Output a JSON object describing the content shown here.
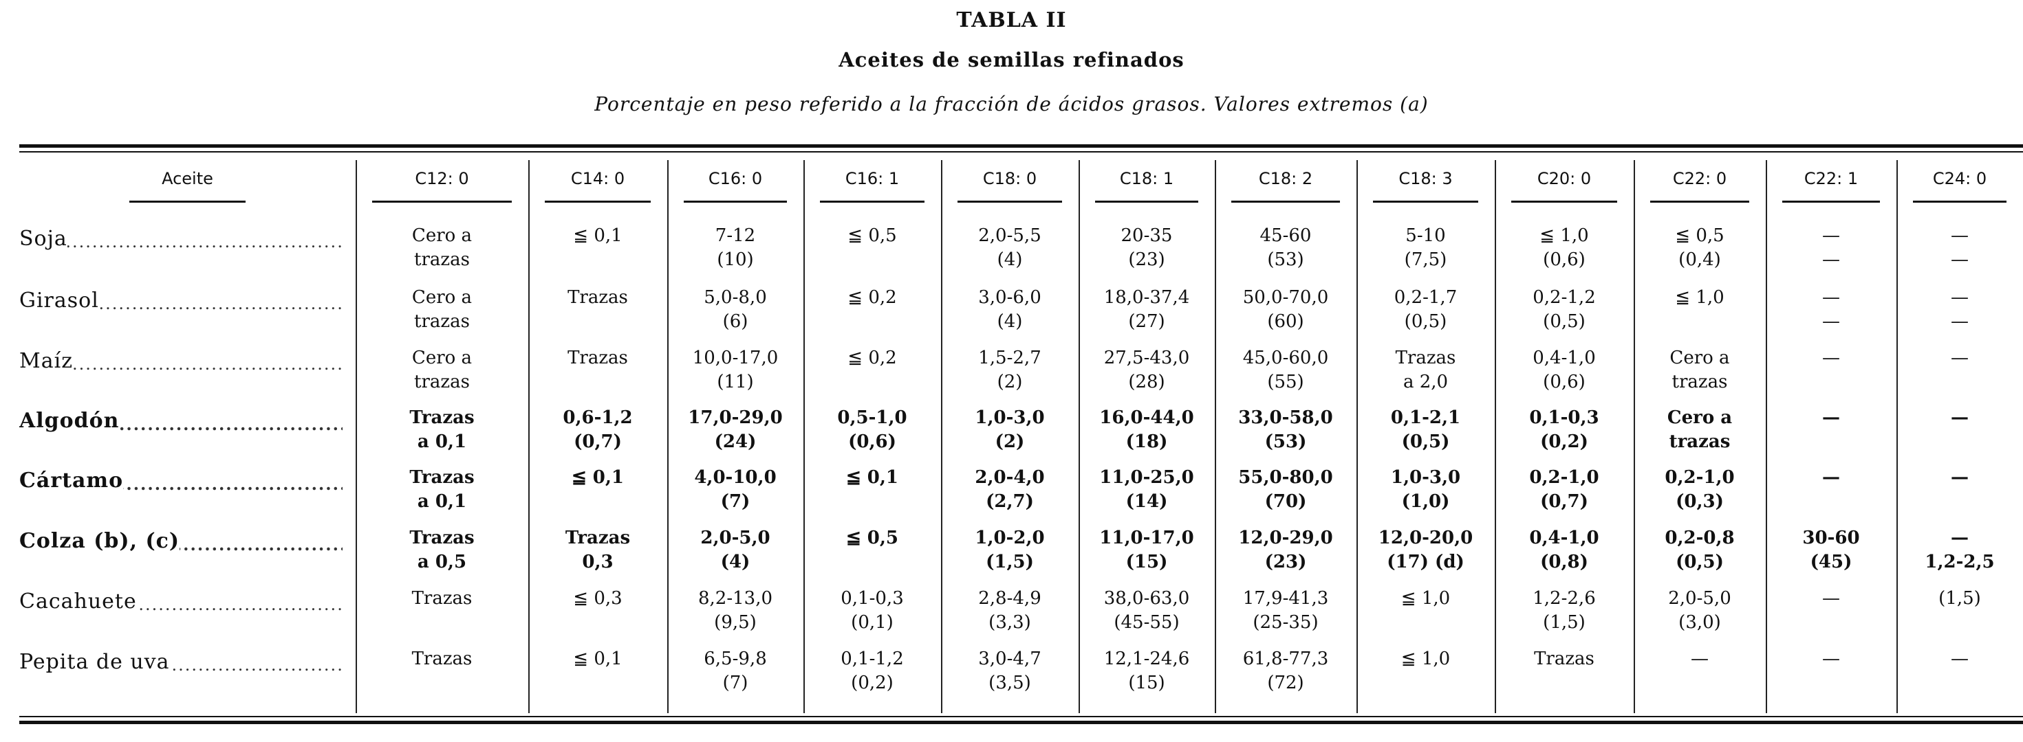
{
  "title": "TABLA II",
  "subtitle": "Aceites de semillas refinados",
  "caption": "Porcentaje en peso referido a la fracción de ácidos grasos. Valores extremos (a)",
  "table": {
    "headers": [
      "Aceite",
      "C12: 0",
      "C14: 0",
      "C16: 0",
      "C16: 1",
      "C18: 0",
      "C18: 1",
      "C18: 2",
      "C18: 3",
      "C20: 0",
      "C22: 0",
      "C22: 1",
      "C24: 0"
    ],
    "rows": [
      {
        "label": "Soja",
        "cells": [
          [
            "Cero a",
            "trazas"
          ],
          [
            "≦ 0,1"
          ],
          [
            "7-12",
            "(10)"
          ],
          [
            "≦ 0,5"
          ],
          [
            "2,0-5,5",
            "(4)"
          ],
          [
            "20-35",
            "(23)"
          ],
          [
            "45-60",
            "(53)"
          ],
          [
            "5-10",
            "(7,5)"
          ],
          [
            "≦ 1,0",
            "(0,6)"
          ],
          [
            "≦ 0,5",
            "(0,4)"
          ],
          [
            "—",
            "—"
          ],
          [
            "—",
            "—"
          ]
        ]
      },
      {
        "label": "Girasol",
        "cells": [
          [
            "Cero a",
            "trazas"
          ],
          [
            "Trazas"
          ],
          [
            "5,0-8,0",
            "(6)"
          ],
          [
            "≦ 0,2"
          ],
          [
            "3,0-6,0",
            "(4)"
          ],
          [
            "18,0-37,4",
            "(27)"
          ],
          [
            "50,0-70,0",
            "(60)"
          ],
          [
            "0,2-1,7",
            "(0,5)"
          ],
          [
            "0,2-1,2",
            "(0,5)"
          ],
          [
            "≦ 1,0"
          ],
          [
            "—",
            "—"
          ],
          [
            "—",
            "—"
          ]
        ]
      },
      {
        "label": "Maíz",
        "cells": [
          [
            "Cero a",
            "trazas"
          ],
          [
            "Trazas"
          ],
          [
            "10,0-17,0",
            "(11)"
          ],
          [
            "≦ 0,2"
          ],
          [
            "1,5-2,7",
            "(2)"
          ],
          [
            "27,5-43,0",
            "(28)"
          ],
          [
            "45,0-60,0",
            "(55)"
          ],
          [
            "Trazas",
            "a 2,0"
          ],
          [
            "0,4-1,0",
            "(0,6)"
          ],
          [
            "Cero a",
            "trazas"
          ],
          [
            "—"
          ],
          [
            "—"
          ]
        ]
      },
      {
        "label": "Algodón",
        "cells": [
          [
            "Trazas",
            "a 0,1"
          ],
          [
            "0,6-1,2",
            "(0,7)"
          ],
          [
            "17,0-29,0",
            "(24)"
          ],
          [
            "0,5-1,0",
            "(0,6)"
          ],
          [
            "1,0-3,0",
            "(2)"
          ],
          [
            "16,0-44,0",
            "(18)"
          ],
          [
            "33,0-58,0",
            "(53)"
          ],
          [
            "0,1-2,1",
            "(0,5)"
          ],
          [
            "0,1-0,3",
            "(0,2)"
          ],
          [
            "Cero a",
            "trazas"
          ],
          [
            "—"
          ],
          [
            "—"
          ]
        ]
      },
      {
        "label": "Cártamo",
        "cells": [
          [
            "Trazas",
            "a 0,1"
          ],
          [
            "≦ 0,1"
          ],
          [
            "4,0-10,0",
            "(7)"
          ],
          [
            "≦ 0,1"
          ],
          [
            "2,0-4,0",
            "(2,7)"
          ],
          [
            "11,0-25,0",
            "(14)"
          ],
          [
            "55,0-80,0",
            "(70)"
          ],
          [
            "1,0-3,0",
            "(1,0)"
          ],
          [
            "0,2-1,0",
            "(0,7)"
          ],
          [
            "0,2-1,0",
            "(0,3)"
          ],
          [
            "—"
          ],
          [
            "—"
          ]
        ]
      },
      {
        "label": "Colza (b), (c)",
        "cells": [
          [
            "Trazas",
            "a 0,5"
          ],
          [
            "Trazas",
            "0,3"
          ],
          [
            "2,0-5,0",
            "(4)"
          ],
          [
            "≦ 0,5"
          ],
          [
            "1,0-2,0",
            "(1,5)"
          ],
          [
            "11,0-17,0",
            "(15)"
          ],
          [
            "12,0-29,0",
            "(23)"
          ],
          [
            "12,0-20,0",
            "(17)  (d)"
          ],
          [
            "0,4-1,0",
            "(0,8)"
          ],
          [
            "0,2-0,8",
            "(0,5)"
          ],
          [
            "30-60",
            "(45)"
          ],
          [
            "—",
            "1,2-2,5"
          ]
        ]
      },
      {
        "label": "Cacahuete",
        "cells": [
          [
            "Trazas"
          ],
          [
            "≦ 0,3"
          ],
          [
            "8,2-13,0",
            "(9,5)"
          ],
          [
            "0,1-0,3",
            "(0,1)"
          ],
          [
            "2,8-4,9",
            "(3,3)"
          ],
          [
            "38,0-63,0",
            "(45-55)"
          ],
          [
            "17,9-41,3",
            "(25-35)"
          ],
          [
            "≦ 1,0"
          ],
          [
            "1,2-2,6",
            "(1,5)"
          ],
          [
            "2,0-5,0",
            "(3,0)"
          ],
          [
            "—"
          ],
          [
            "(1,5)"
          ]
        ]
      },
      {
        "label": "Pepita de uva",
        "cells": [
          [
            "Trazas"
          ],
          [
            "≦ 0,1"
          ],
          [
            "6,5-9,8",
            "(7)"
          ],
          [
            "0,1-1,2",
            "(0,2)"
          ],
          [
            "3,0-4,7",
            "(3,5)"
          ],
          [
            "12,1-24,6",
            "(15)"
          ],
          [
            "61,8-77,3",
            "(72)"
          ],
          [
            "≦ 1,0"
          ],
          [
            "Trazas"
          ],
          [
            "—"
          ],
          [
            "—"
          ],
          [
            "—"
          ]
        ]
      }
    ]
  }
}
